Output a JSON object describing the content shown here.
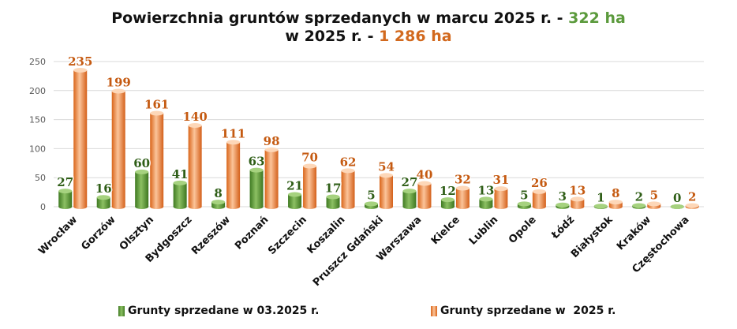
{
  "title": {
    "line1_prefix": "Powierzchnia gruntów sprzedanych w marcu 2025 r. - ",
    "line1_value": "322 ha",
    "line2_prefix": "w 2025 r. - ",
    "line2_value": "1 286 ha"
  },
  "colors": {
    "green": "#4f8a2e",
    "green_light": "#8cc063",
    "orange": "#e07a2e",
    "orange_light": "#fbc49a"
  },
  "chart_data": {
    "type": "bar",
    "categories": [
      "Wrocław",
      "Gorzów",
      "Olsztyn",
      "Bydgoszcz",
      "Rzeszów",
      "Poznań",
      "Szczecin",
      "Koszalin",
      "Pruszcz Gdański",
      "Warszawa",
      "Kielce",
      "Lublin",
      "Opole",
      "Łódź",
      "Białystok",
      "Kraków",
      "Częstochowa"
    ],
    "series": [
      {
        "name": "Grunty sprzedane w 03.2025 r.",
        "values": [
          27,
          16,
          60,
          41,
          8,
          63,
          21,
          17,
          5,
          27,
          12,
          13,
          5,
          3,
          1,
          2,
          0
        ]
      },
      {
        "name": "Grunty sprzedane w  2025 r.",
        "values": [
          235,
          199,
          161,
          140,
          111,
          98,
          70,
          62,
          54,
          40,
          32,
          31,
          26,
          13,
          8,
          5,
          2
        ]
      }
    ],
    "ylim": [
      0,
      250
    ],
    "yticks": [
      0,
      50,
      100,
      150,
      200,
      250
    ],
    "grid": true,
    "legend": "bottom"
  }
}
